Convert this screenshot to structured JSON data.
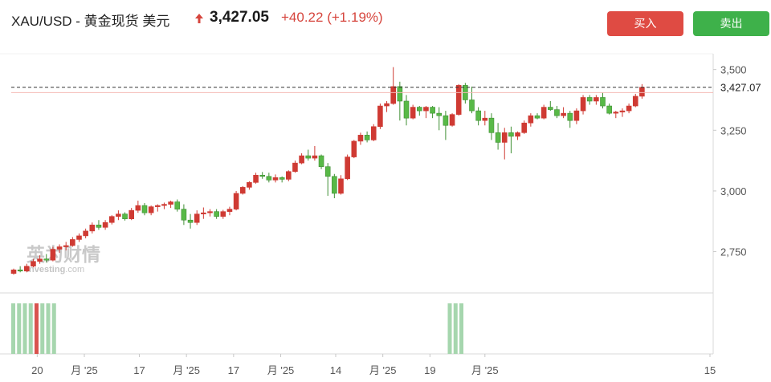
{
  "header": {
    "symbol": "XAU/USD - 黄金现货 美元",
    "price": "3,427.05",
    "change": "+40.22",
    "change_pct": "(+1.19%)",
    "direction_icon": "up-arrow-icon",
    "change_color": "#d6453d"
  },
  "actions": {
    "buy_label": "买入",
    "sell_label": "卖出",
    "buy_color": "#df4b43",
    "sell_color": "#3eb14a"
  },
  "watermark": {
    "brand": "英为财情",
    "sub": "Investing",
    "sub_suffix": ".com"
  },
  "chart_data": {
    "type": "candlestick",
    "title": "",
    "xlabel": "",
    "ylabel": "",
    "y_ticks": [
      "3,500",
      "3,250",
      "3,000",
      "2,750"
    ],
    "y_tick_values": [
      3500,
      3250,
      3000,
      2750
    ],
    "ylim": [
      2580,
      3565
    ],
    "x_tick_labels": [
      "20",
      "月 '25",
      "17",
      "月 '25",
      "17",
      "月 '25",
      "14",
      "月 '25",
      "19",
      "月 '25",
      "15"
    ],
    "x_tick_index": [
      3,
      9,
      16,
      22,
      28,
      34,
      41,
      47,
      53,
      60,
      68
    ],
    "last_price_label": "3,427.07",
    "last_price": 3427.07,
    "reference_price": 3405,
    "up_color": "#cf3a33",
    "down_color": "#58b947",
    "candles": [
      [
        2660,
        2680,
        2655,
        2675
      ],
      [
        2675,
        2690,
        2665,
        2670
      ],
      [
        2670,
        2700,
        2665,
        2690
      ],
      [
        2690,
        2720,
        2685,
        2710
      ],
      [
        2710,
        2735,
        2700,
        2720
      ],
      [
        2720,
        2740,
        2705,
        2715
      ],
      [
        2715,
        2770,
        2710,
        2760
      ],
      [
        2760,
        2780,
        2745,
        2770
      ],
      [
        2770,
        2790,
        2755,
        2775
      ],
      [
        2775,
        2810,
        2770,
        2800
      ],
      [
        2800,
        2825,
        2790,
        2815
      ],
      [
        2815,
        2845,
        2805,
        2835
      ],
      [
        2835,
        2870,
        2825,
        2860
      ],
      [
        2860,
        2880,
        2840,
        2850
      ],
      [
        2850,
        2880,
        2840,
        2870
      ],
      [
        2870,
        2900,
        2862,
        2895
      ],
      [
        2895,
        2920,
        2880,
        2905
      ],
      [
        2905,
        2912,
        2878,
        2885
      ],
      [
        2885,
        2930,
        2880,
        2920
      ],
      [
        2920,
        2960,
        2910,
        2940
      ],
      [
        2940,
        2950,
        2900,
        2910
      ],
      [
        2910,
        2940,
        2900,
        2935
      ],
      [
        2935,
        2945,
        2915,
        2940
      ],
      [
        2940,
        2952,
        2925,
        2945
      ],
      [
        2945,
        2960,
        2930,
        2955
      ],
      [
        2955,
        2965,
        2915,
        2925
      ],
      [
        2925,
        2945,
        2860,
        2880
      ],
      [
        2880,
        2905,
        2845,
        2870
      ],
      [
        2870,
        2920,
        2860,
        2905
      ],
      [
        2905,
        2932,
        2885,
        2910
      ],
      [
        2910,
        2925,
        2895,
        2915
      ],
      [
        2915,
        2925,
        2885,
        2895
      ],
      [
        2895,
        2922,
        2885,
        2915
      ],
      [
        2915,
        2935,
        2900,
        2925
      ],
      [
        2925,
        3000,
        2920,
        2990
      ],
      [
        2990,
        3020,
        2985,
        3015
      ],
      [
        3015,
        3040,
        3005,
        3035
      ],
      [
        3035,
        3075,
        3030,
        3065
      ],
      [
        3065,
        3078,
        3050,
        3060
      ],
      [
        3060,
        3075,
        3035,
        3045
      ],
      [
        3045,
        3068,
        3035,
        3055
      ],
      [
        3055,
        3060,
        3035,
        3048
      ],
      [
        3048,
        3085,
        3040,
        3080
      ],
      [
        3080,
        3125,
        3075,
        3115
      ],
      [
        3115,
        3155,
        3110,
        3145
      ],
      [
        3145,
        3170,
        3125,
        3135
      ],
      [
        3135,
        3185,
        3125,
        3145
      ],
      [
        3145,
        3150,
        3090,
        3100
      ],
      [
        3100,
        3115,
        2980,
        3060
      ],
      [
        3060,
        3070,
        2970,
        2990
      ],
      [
        2990,
        3065,
        2985,
        3050
      ],
      [
        3050,
        3150,
        3045,
        3140
      ],
      [
        3140,
        3210,
        3135,
        3205
      ],
      [
        3205,
        3240,
        3190,
        3230
      ],
      [
        3230,
        3245,
        3200,
        3210
      ],
      [
        3210,
        3275,
        3205,
        3265
      ],
      [
        3265,
        3360,
        3255,
        3350
      ],
      [
        3350,
        3370,
        3325,
        3360
      ],
      [
        3360,
        3510,
        3355,
        3430
      ],
      [
        3430,
        3450,
        3290,
        3370
      ],
      [
        3370,
        3395,
        3270,
        3300
      ],
      [
        3300,
        3355,
        3295,
        3345
      ],
      [
        3345,
        3350,
        3310,
        3330
      ],
      [
        3330,
        3350,
        3300,
        3345
      ],
      [
        3345,
        3350,
        3300,
        3320
      ],
      [
        3320,
        3345,
        3250,
        3310
      ],
      [
        3310,
        3330,
        3210,
        3270
      ],
      [
        3270,
        3320,
        3265,
        3315
      ],
      [
        3315,
        3440,
        3310,
        3435
      ],
      [
        3435,
        3445,
        3360,
        3375
      ],
      [
        3375,
        3430,
        3320,
        3330
      ],
      [
        3330,
        3345,
        3270,
        3290
      ],
      [
        3290,
        3330,
        3270,
        3300
      ],
      [
        3300,
        3320,
        3210,
        3240
      ],
      [
        3240,
        3280,
        3170,
        3200
      ],
      [
        3200,
        3260,
        3130,
        3240
      ],
      [
        3240,
        3265,
        3155,
        3225
      ],
      [
        3225,
        3245,
        3210,
        3240
      ],
      [
        3240,
        3290,
        3235,
        3280
      ],
      [
        3280,
        3320,
        3265,
        3310
      ],
      [
        3310,
        3320,
        3295,
        3300
      ],
      [
        3300,
        3355,
        3295,
        3345
      ],
      [
        3345,
        3370,
        3330,
        3335
      ],
      [
        3335,
        3350,
        3300,
        3310
      ],
      [
        3310,
        3345,
        3300,
        3320
      ],
      [
        3320,
        3330,
        3260,
        3290
      ],
      [
        3290,
        3340,
        3275,
        3330
      ],
      [
        3330,
        3395,
        3315,
        3385
      ],
      [
        3385,
        3395,
        3355,
        3370
      ],
      [
        3370,
        3395,
        3355,
        3385
      ],
      [
        3385,
        3405,
        3340,
        3350
      ],
      [
        3350,
        3360,
        3315,
        3320
      ],
      [
        3320,
        3330,
        3300,
        3325
      ],
      [
        3325,
        3340,
        3305,
        3330
      ],
      [
        3330,
        3360,
        3320,
        3350
      ],
      [
        3350,
        3400,
        3345,
        3390
      ],
      [
        3390,
        3440,
        3380,
        3427
      ]
    ],
    "volume_bars": [
      {
        "i": 0,
        "color": "#a6d6ae"
      },
      {
        "i": 1,
        "color": "#a6d6ae"
      },
      {
        "i": 2,
        "color": "#a6d6ae"
      },
      {
        "i": 3,
        "color": "#a6d6ae"
      },
      {
        "i": 4,
        "color": "#d9534f"
      },
      {
        "i": 5,
        "color": "#a6d6ae"
      },
      {
        "i": 6,
        "color": "#a6d6ae"
      },
      {
        "i": 7,
        "color": "#a6d6ae"
      },
      {
        "i": 62,
        "color": "#a6d6ae"
      },
      {
        "i": 63,
        "color": "#a6d6ae"
      },
      {
        "i": 64,
        "color": "#a6d6ae"
      }
    ]
  }
}
